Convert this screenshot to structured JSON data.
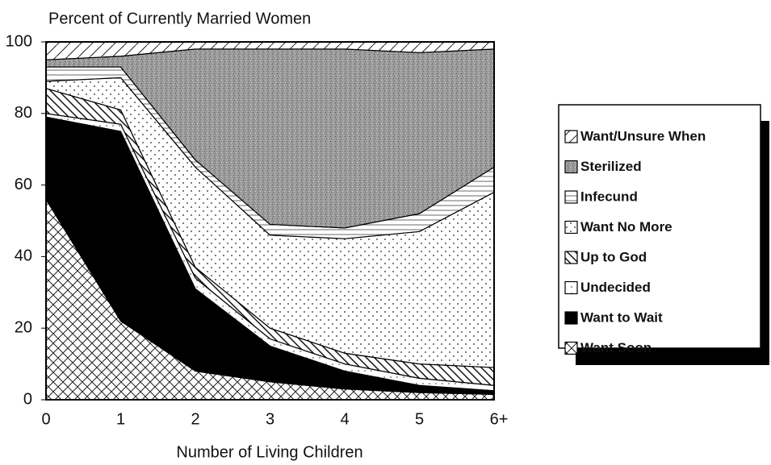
{
  "chart_data": {
    "type": "stacked_area",
    "title": "Percent of Currently Married Women",
    "x_label": "Number of Living Children",
    "categories": [
      "0",
      "1",
      "2",
      "3",
      "4",
      "5",
      "6+"
    ],
    "ylim": [
      0,
      100
    ],
    "yticks": [
      0,
      20,
      40,
      60,
      80,
      100
    ],
    "series": [
      {
        "name": "Want Soon",
        "pattern": "cross",
        "values": [
          56,
          22,
          8,
          5,
          3,
          2,
          1.5
        ]
      },
      {
        "name": "Want to Wait",
        "pattern": "solid",
        "values": [
          23,
          53,
          23,
          10,
          5,
          2,
          1
        ]
      },
      {
        "name": "Undecided",
        "pattern": "sparse",
        "values": [
          1,
          2,
          3,
          2,
          2,
          2,
          1.5
        ]
      },
      {
        "name": "Up to God",
        "pattern": "diag",
        "values": [
          7,
          4,
          3,
          3,
          3,
          4,
          5
        ]
      },
      {
        "name": "Want No More",
        "pattern": "dots",
        "values": [
          2,
          9,
          28,
          26,
          32,
          37,
          49
        ]
      },
      {
        "name": "Infecund",
        "pattern": "hlines",
        "values": [
          4,
          3,
          2,
          3,
          3,
          5,
          7
        ]
      },
      {
        "name": "Sterilized",
        "pattern": "gray",
        "values": [
          2,
          3,
          31,
          49,
          50,
          45,
          33
        ]
      },
      {
        "name": "Want/Unsure When",
        "pattern": "diag2",
        "values": [
          5,
          4,
          2,
          2,
          2,
          3,
          2
        ]
      }
    ]
  }
}
